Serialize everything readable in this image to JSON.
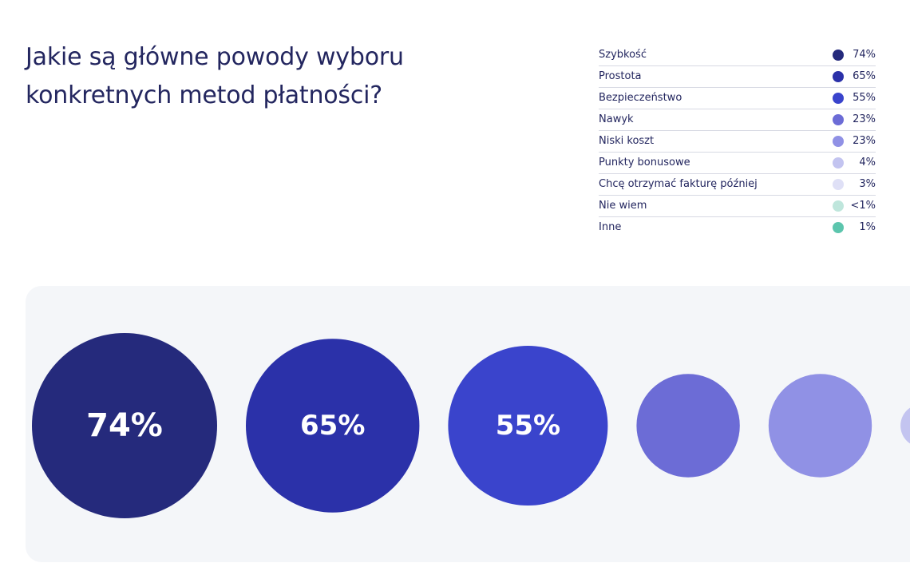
{
  "title": {
    "line1": "Jakie są główne powody wyboru",
    "line2": "konkretnych metod płatności?"
  },
  "chart_data": {
    "type": "bubble",
    "title": "Jakie są główne powody wyboru konkretnych metod płatności?",
    "unit": "%",
    "items": [
      {
        "label": "Szybkość",
        "value": 74,
        "display": "74%",
        "color": "#252a7c",
        "show_label": true
      },
      {
        "label": "Prostota",
        "value": 65,
        "display": "65%",
        "color": "#2b31a9",
        "show_label": true
      },
      {
        "label": "Bezpieczeństwo",
        "value": 55,
        "display": "55%",
        "color": "#3a44cc",
        "show_label": true
      },
      {
        "label": "Nawyk",
        "value": 23,
        "display": "23%",
        "color": "#6c6cd6",
        "show_label": false
      },
      {
        "label": "Niski koszt",
        "value": 23,
        "display": "23%",
        "color": "#9091e5",
        "show_label": false
      },
      {
        "label": "Punkty bonusowe",
        "value": 4,
        "display": "4%",
        "color": "#c3c4f0",
        "show_label": false
      },
      {
        "label": "Chcę otrzymać fakturę później",
        "value": 3,
        "display": "3%",
        "color": "#dfe0f6",
        "show_label": false
      },
      {
        "label": "Nie wiem",
        "value": 0.5,
        "display": "<1%",
        "color": "#bfe6dc",
        "show_label": false
      },
      {
        "label": "Inne",
        "value": 1,
        "display": "1%",
        "color": "#5cc5ad",
        "show_label": false
      }
    ]
  }
}
